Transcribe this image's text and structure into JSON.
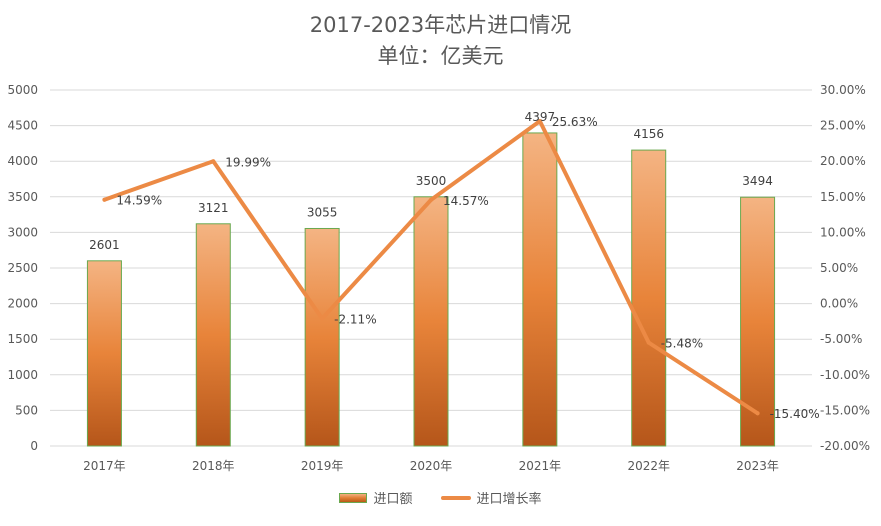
{
  "chart_data": {
    "type": "bar+line",
    "title": "2017-2023年芯片进口情况",
    "subtitle": "单位：亿美元",
    "categories": [
      "2017年",
      "2018年",
      "2019年",
      "2020年",
      "2021年",
      "2022年",
      "2023年"
    ],
    "series": [
      {
        "name": "进口额",
        "type": "bar",
        "axis": "left",
        "values": [
          2601,
          3121,
          3055,
          3500,
          4397,
          4156,
          3494
        ],
        "labels": [
          "2601",
          "3121",
          "3055",
          "3500",
          "4397",
          "4156",
          "3494"
        ]
      },
      {
        "name": "进口增长率",
        "type": "line",
        "axis": "right",
        "values": [
          14.59,
          19.99,
          -2.11,
          14.57,
          25.63,
          -5.48,
          -15.4
        ],
        "labels": [
          "14.59%",
          "19.99%",
          "-2.11%",
          "14.57%",
          "25.63%",
          "-5.48%",
          "-15.40%"
        ]
      }
    ],
    "y_left": {
      "range": [
        0,
        5000
      ],
      "ticks": [
        "0",
        "500",
        "1000",
        "1500",
        "2000",
        "2500",
        "3000",
        "3500",
        "4000",
        "4500",
        "5000"
      ],
      "tick_values": [
        0,
        500,
        1000,
        1500,
        2000,
        2500,
        3000,
        3500,
        4000,
        4500,
        5000
      ]
    },
    "y_right": {
      "range": [
        -20,
        30
      ],
      "ticks": [
        "-20.00%",
        "-15.00%",
        "-10.00%",
        "-5.00%",
        "0.00%",
        "5.00%",
        "10.00%",
        "15.00%",
        "20.00%",
        "25.00%",
        "30.00%"
      ],
      "tick_values": [
        -20,
        -15,
        -10,
        -5,
        0,
        5,
        10,
        15,
        20,
        25,
        30
      ]
    },
    "grid": true,
    "legend": "bottom",
    "colors": {
      "bar_top": "#f4b483",
      "bar_mid": "#e8843a",
      "bar_bottom": "#b5561a",
      "bar_border": "#6aa84f",
      "line": "#ec8a45",
      "grid": "#d9d9d9"
    }
  }
}
